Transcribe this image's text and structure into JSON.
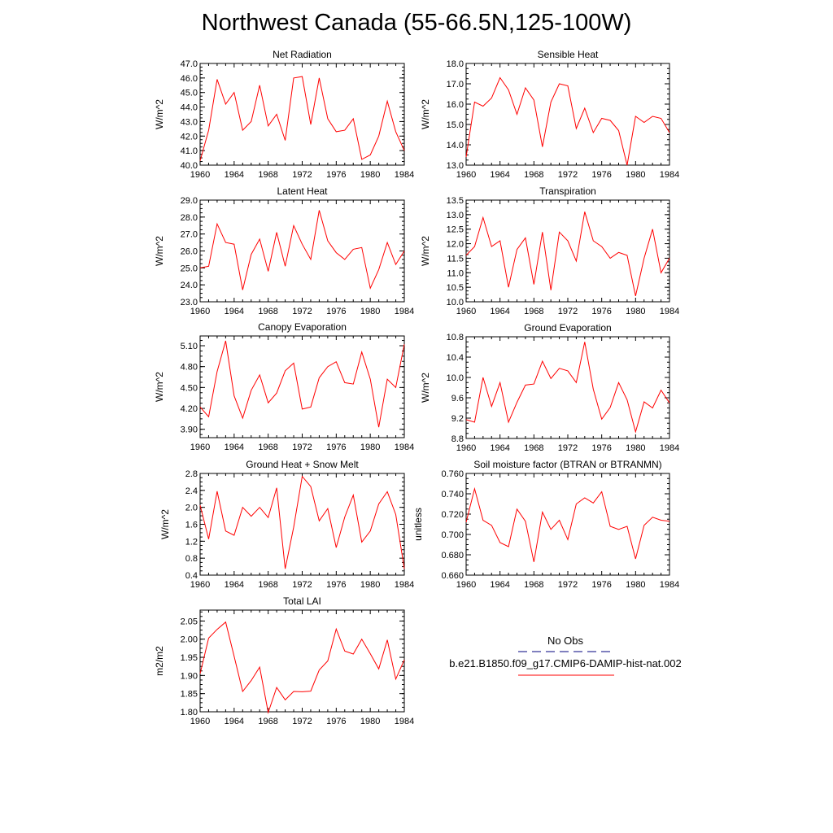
{
  "figure": {
    "title": "Northwest Canada (55-66.5N,125-100W)",
    "line_color": "#ff0000",
    "obs_color": "#00007f"
  },
  "legend": {
    "obs_label": "No Obs",
    "model_label": "b.e21.B1850.f09_g17.CMIP6-DAMIP-hist-nat.002"
  },
  "chart_data": [
    {
      "type": "line",
      "title": "Net Radiation",
      "ylabel": "W/m^2",
      "xlim": [
        1960,
        1984
      ],
      "ylim": [
        40.0,
        47.0
      ],
      "xticks": [
        1960,
        1964,
        1968,
        1972,
        1976,
        1980,
        1984
      ],
      "yticks": [
        40.0,
        41.0,
        42.0,
        43.0,
        44.0,
        45.0,
        46.0,
        47.0
      ],
      "ytick_labels": [
        "40.0",
        "41.0",
        "42.0",
        "43.0",
        "44.0",
        "45.0",
        "46.0",
        "47.0"
      ],
      "x": [
        1960,
        1961,
        1962,
        1963,
        1964,
        1965,
        1966,
        1967,
        1968,
        1969,
        1970,
        1971,
        1972,
        1973,
        1974,
        1975,
        1976,
        1977,
        1978,
        1979,
        1980,
        1981,
        1982,
        1983,
        1984
      ],
      "series": [
        {
          "values": [
            40.3,
            42.4,
            45.9,
            44.2,
            45.0,
            42.4,
            43.0,
            45.5,
            42.7,
            43.5,
            41.7,
            46.0,
            46.1,
            42.8,
            46.0,
            43.2,
            42.3,
            42.4,
            43.2,
            40.4,
            40.7,
            42.0,
            44.4,
            42.3,
            41.0
          ]
        }
      ]
    },
    {
      "type": "line",
      "title": "Sensible Heat",
      "ylabel": "W/m^2",
      "xlim": [
        1960,
        1984
      ],
      "ylim": [
        13.0,
        18.0
      ],
      "xticks": [
        1960,
        1964,
        1968,
        1972,
        1976,
        1980,
        1984
      ],
      "yticks": [
        13.0,
        14.0,
        15.0,
        16.0,
        17.0,
        18.0
      ],
      "ytick_labels": [
        "13.0",
        "14.0",
        "15.0",
        "16.0",
        "17.0",
        "18.0"
      ],
      "x": [
        1960,
        1961,
        1962,
        1963,
        1964,
        1965,
        1966,
        1967,
        1968,
        1969,
        1970,
        1971,
        1972,
        1973,
        1974,
        1975,
        1976,
        1977,
        1978,
        1979,
        1980,
        1981,
        1982,
        1983,
        1984
      ],
      "series": [
        {
          "values": [
            13.4,
            16.1,
            15.9,
            16.3,
            17.3,
            16.7,
            15.5,
            16.8,
            16.2,
            13.9,
            16.1,
            17.0,
            16.9,
            14.8,
            15.8,
            14.6,
            15.3,
            15.2,
            14.7,
            13.0,
            15.4,
            15.1,
            15.4,
            15.3,
            14.6
          ]
        }
      ]
    },
    {
      "type": "line",
      "title": "Latent Heat",
      "ylabel": "W/m^2",
      "xlim": [
        1960,
        1984
      ],
      "ylim": [
        23.0,
        29.0
      ],
      "xticks": [
        1960,
        1964,
        1968,
        1972,
        1976,
        1980,
        1984
      ],
      "yticks": [
        23.0,
        24.0,
        25.0,
        26.0,
        27.0,
        28.0,
        29.0
      ],
      "ytick_labels": [
        "23.0",
        "24.0",
        "25.0",
        "26.0",
        "27.0",
        "28.0",
        "29.0"
      ],
      "x": [
        1960,
        1961,
        1962,
        1963,
        1964,
        1965,
        1966,
        1967,
        1968,
        1969,
        1970,
        1971,
        1972,
        1973,
        1974,
        1975,
        1976,
        1977,
        1978,
        1979,
        1980,
        1981,
        1982,
        1983,
        1984
      ],
      "series": [
        {
          "values": [
            25.0,
            25.1,
            27.6,
            26.5,
            26.4,
            23.7,
            25.8,
            26.7,
            24.8,
            27.1,
            25.1,
            27.5,
            26.4,
            25.5,
            28.4,
            26.6,
            25.9,
            25.5,
            26.1,
            26.2,
            23.8,
            24.9,
            26.5,
            25.2,
            26.0
          ]
        }
      ]
    },
    {
      "type": "line",
      "title": "Transpiration",
      "ylabel": "W/m^2",
      "xlim": [
        1960,
        1984
      ],
      "ylim": [
        10.0,
        13.5
      ],
      "xticks": [
        1960,
        1964,
        1968,
        1972,
        1976,
        1980,
        1984
      ],
      "yticks": [
        10.0,
        10.5,
        11.0,
        11.5,
        12.0,
        12.5,
        13.0,
        13.5
      ],
      "ytick_labels": [
        "10.0",
        "10.5",
        "11.0",
        "11.5",
        "12.0",
        "12.5",
        "13.0",
        "13.5"
      ],
      "x": [
        1960,
        1961,
        1962,
        1963,
        1964,
        1965,
        1966,
        1967,
        1968,
        1969,
        1970,
        1971,
        1972,
        1973,
        1974,
        1975,
        1976,
        1977,
        1978,
        1979,
        1980,
        1981,
        1982,
        1983,
        1984
      ],
      "series": [
        {
          "values": [
            11.6,
            11.9,
            12.9,
            11.9,
            12.1,
            10.5,
            11.8,
            12.2,
            10.6,
            12.4,
            10.4,
            12.4,
            12.1,
            11.4,
            13.1,
            12.1,
            11.9,
            11.5,
            11.7,
            11.6,
            10.2,
            11.5,
            12.5,
            11.0,
            11.5
          ]
        }
      ]
    },
    {
      "type": "line",
      "title": "Canopy Evaporation",
      "ylabel": "W/m^2",
      "xlim": [
        1960,
        1984
      ],
      "ylim": [
        3.78,
        5.24
      ],
      "xticks": [
        1960,
        1964,
        1968,
        1972,
        1976,
        1980,
        1984
      ],
      "yticks": [
        3.9,
        4.2,
        4.5,
        4.8,
        5.1
      ],
      "ytick_labels": [
        "3.90",
        "4.20",
        "4.50",
        "4.80",
        "5.10"
      ],
      "x": [
        1960,
        1961,
        1962,
        1963,
        1964,
        1965,
        1966,
        1967,
        1968,
        1969,
        1970,
        1971,
        1972,
        1973,
        1974,
        1975,
        1976,
        1977,
        1978,
        1979,
        1980,
        1981,
        1982,
        1983,
        1984
      ],
      "series": [
        {
          "values": [
            4.22,
            4.08,
            4.73,
            5.17,
            4.38,
            4.06,
            4.46,
            4.68,
            4.28,
            4.42,
            4.74,
            4.85,
            4.19,
            4.22,
            4.64,
            4.8,
            4.87,
            4.57,
            4.55,
            5.01,
            4.62,
            3.93,
            4.62,
            4.5,
            5.12
          ]
        }
      ]
    },
    {
      "type": "line",
      "title": "Ground Evaporation",
      "ylabel": "W/m^2",
      "xlim": [
        1960,
        1984
      ],
      "ylim": [
        8.8,
        10.8
      ],
      "xticks": [
        1960,
        1964,
        1968,
        1972,
        1976,
        1980,
        1984
      ],
      "yticks": [
        8.8,
        9.2,
        9.6,
        10.0,
        10.4,
        10.8
      ],
      "ytick_labels": [
        "8.8",
        "9.2",
        "9.6",
        "10.0",
        "10.4",
        "10.8"
      ],
      "x": [
        1960,
        1961,
        1962,
        1963,
        1964,
        1965,
        1966,
        1967,
        1968,
        1969,
        1970,
        1971,
        1972,
        1973,
        1974,
        1975,
        1976,
        1977,
        1978,
        1979,
        1980,
        1981,
        1982,
        1983,
        1984
      ],
      "series": [
        {
          "values": [
            9.17,
            9.12,
            10.0,
            9.43,
            9.9,
            9.12,
            9.51,
            9.85,
            9.87,
            10.32,
            9.98,
            10.18,
            10.13,
            9.9,
            10.7,
            9.77,
            9.18,
            9.41,
            9.9,
            9.56,
            8.93,
            9.52,
            9.4,
            9.75,
            9.5
          ]
        }
      ]
    },
    {
      "type": "line",
      "title": "Ground Heat + Snow Melt",
      "ylabel": "W/m^2",
      "xlim": [
        1960,
        1984
      ],
      "ylim": [
        0.4,
        2.8
      ],
      "xticks": [
        1960,
        1964,
        1968,
        1972,
        1976,
        1980,
        1984
      ],
      "yticks": [
        0.4,
        0.8,
        1.2,
        1.6,
        2.0,
        2.4,
        2.8
      ],
      "ytick_labels": [
        "0.4",
        "0.8",
        "1.2",
        "1.6",
        "2.0",
        "2.4",
        "2.8"
      ],
      "x": [
        1960,
        1961,
        1962,
        1963,
        1964,
        1965,
        1966,
        1967,
        1968,
        1969,
        1970,
        1971,
        1972,
        1973,
        1974,
        1975,
        1976,
        1977,
        1978,
        1979,
        1980,
        1981,
        1982,
        1983,
        1984
      ],
      "series": [
        {
          "values": [
            2.05,
            1.25,
            2.38,
            1.44,
            1.34,
            2.0,
            1.79,
            2.0,
            1.76,
            2.46,
            0.55,
            1.53,
            2.73,
            2.49,
            1.68,
            1.97,
            1.05,
            1.77,
            2.29,
            1.18,
            1.44,
            2.08,
            2.37,
            1.83,
            0.55
          ]
        }
      ]
    },
    {
      "type": "line",
      "title": "Soil moisture factor (BTRAN or BTRANMN)",
      "ylabel": "unitless",
      "xlim": [
        1960,
        1984
      ],
      "ylim": [
        0.66,
        0.76
      ],
      "xticks": [
        1960,
        1964,
        1968,
        1972,
        1976,
        1980,
        1984
      ],
      "yticks": [
        0.66,
        0.68,
        0.7,
        0.72,
        0.74,
        0.76
      ],
      "ytick_labels": [
        "0.660",
        "0.680",
        "0.700",
        "0.720",
        "0.740",
        "0.760"
      ],
      "x": [
        1960,
        1961,
        1962,
        1963,
        1964,
        1965,
        1966,
        1967,
        1968,
        1969,
        1970,
        1971,
        1972,
        1973,
        1974,
        1975,
        1976,
        1977,
        1978,
        1979,
        1980,
        1981,
        1982,
        1983,
        1984
      ],
      "series": [
        {
          "values": [
            0.712,
            0.745,
            0.714,
            0.709,
            0.692,
            0.688,
            0.725,
            0.713,
            0.673,
            0.722,
            0.705,
            0.714,
            0.695,
            0.73,
            0.736,
            0.731,
            0.742,
            0.708,
            0.705,
            0.708,
            0.676,
            0.709,
            0.717,
            0.714,
            0.713
          ]
        }
      ]
    },
    {
      "type": "line",
      "title": "Total LAI",
      "ylabel": "m2/m2",
      "xlim": [
        1960,
        1984
      ],
      "ylim": [
        1.8,
        2.08
      ],
      "xticks": [
        1960,
        1964,
        1968,
        1972,
        1976,
        1980,
        1984
      ],
      "yticks": [
        1.8,
        1.85,
        1.9,
        1.95,
        2.0,
        2.05
      ],
      "ytick_labels": [
        "1.80",
        "1.85",
        "1.90",
        "1.95",
        "2.00",
        "2.05"
      ],
      "x": [
        1960,
        1961,
        1962,
        1963,
        1964,
        1965,
        1966,
        1967,
        1968,
        1969,
        1970,
        1971,
        1972,
        1973,
        1974,
        1975,
        1976,
        1977,
        1978,
        1979,
        1980,
        1981,
        1982,
        1983,
        1984
      ],
      "series": [
        {
          "values": [
            1.905,
            2.003,
            2.027,
            2.047,
            1.953,
            1.856,
            1.886,
            1.923,
            1.798,
            1.867,
            1.833,
            1.856,
            1.855,
            1.857,
            1.915,
            1.94,
            2.028,
            1.967,
            1.959,
            2.0,
            1.96,
            1.918,
            1.998,
            1.89,
            1.943
          ]
        }
      ]
    }
  ]
}
